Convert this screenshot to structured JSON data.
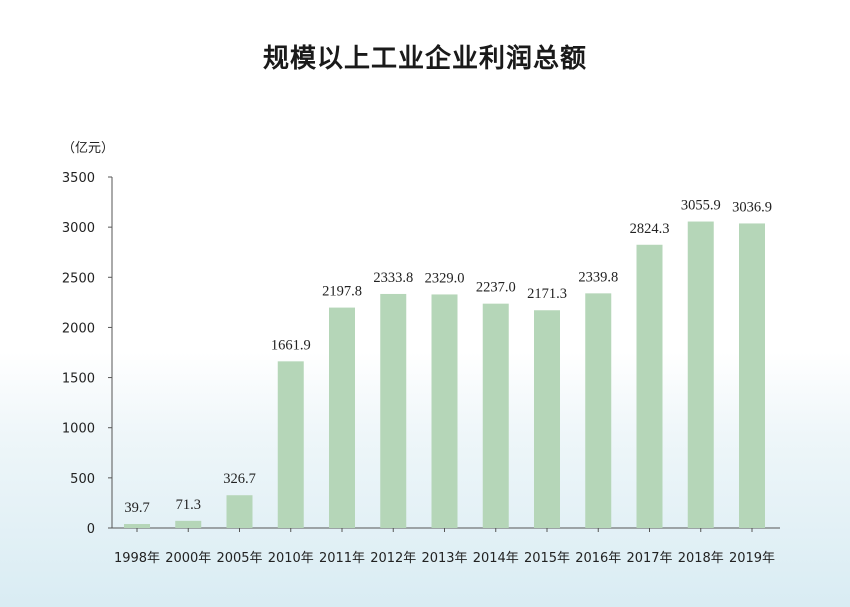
{
  "chart_data": {
    "type": "bar",
    "title": "规模以上工业企业利润总额",
    "unit_label": "（亿元）",
    "categories": [
      "1998年",
      "2000年",
      "2005年",
      "2010年",
      "2011年",
      "2012年",
      "2013年",
      "2014年",
      "2015年",
      "2016年",
      "2017年",
      "2018年",
      "2019年"
    ],
    "values": [
      39.7,
      71.3,
      326.7,
      1661.9,
      2197.8,
      2333.8,
      2329.0,
      2237.0,
      2171.3,
      2339.8,
      2824.3,
      3055.9,
      3036.9
    ],
    "value_labels": [
      "39.7",
      "71.3",
      "326.7",
      "1661.9",
      "2197.8",
      "2333.8",
      "2329.0",
      "2237.0",
      "2171.3",
      "2339.8",
      "2824.3",
      "3055.9",
      "3036.9"
    ],
    "yticks": [
      "0",
      "500",
      "1000",
      "1500",
      "2000",
      "2500",
      "3000",
      "3500"
    ],
    "ylim": [
      0,
      3500
    ],
    "grid": false,
    "bar_color": "#b5d6b8",
    "axis_color": "#555555"
  }
}
